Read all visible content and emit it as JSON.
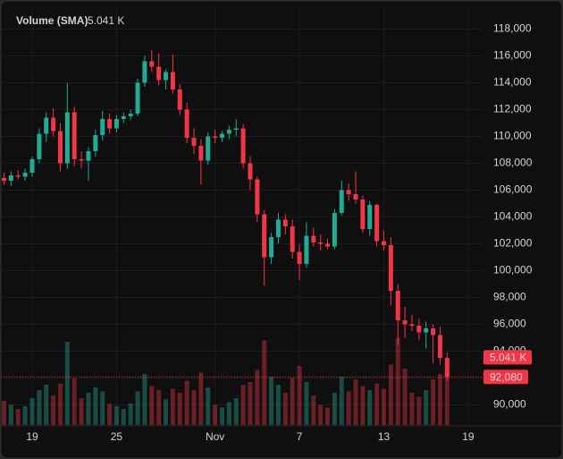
{
  "chart_data": {
    "type": "candlestick",
    "indicator": {
      "name": "Volume (SMA)",
      "value": 5.041,
      "value_label": "5.041 K"
    },
    "last_price": {
      "value": 92080,
      "label": "92,080"
    },
    "up_color": "#22ab94",
    "down_color": "#f23645",
    "grid": true,
    "ylim": [
      88500,
      118700
    ],
    "yticks": [
      {
        "value": 90000,
        "label": "90,000"
      },
      {
        "value": 92000,
        "label": "92,000"
      },
      {
        "value": 94000,
        "label": "94,000"
      },
      {
        "value": 96000,
        "label": "96,000"
      },
      {
        "value": 98000,
        "label": "98,000"
      },
      {
        "value": 100000,
        "label": "100,000"
      },
      {
        "value": 102000,
        "label": "102,000"
      },
      {
        "value": 104000,
        "label": "104,000"
      },
      {
        "value": 106000,
        "label": "106,000"
      },
      {
        "value": 108000,
        "label": "108,000"
      },
      {
        "value": 110000,
        "label": "110,000"
      },
      {
        "value": 112000,
        "label": "112,000"
      },
      {
        "value": 114000,
        "label": "114,000"
      },
      {
        "value": 116000,
        "label": "116,000"
      },
      {
        "value": 118000,
        "label": "118,000"
      }
    ],
    "categories": [
      null,
      null,
      null,
      null,
      "19",
      null,
      null,
      null,
      null,
      null,
      null,
      null,
      null,
      null,
      null,
      null,
      "25",
      null,
      null,
      null,
      null,
      null,
      null,
      null,
      null,
      null,
      null,
      null,
      null,
      null,
      "Nov",
      null,
      null,
      null,
      null,
      null,
      null,
      null,
      null,
      null,
      null,
      null,
      "7",
      null,
      null,
      null,
      null,
      null,
      null,
      null,
      null,
      null,
      null,
      null,
      "13",
      null,
      null,
      null,
      null,
      null,
      null,
      null,
      null,
      null,
      null,
      null,
      "19"
    ],
    "open": [
      106900,
      106700,
      107100,
      107000,
      107300,
      108300,
      110200,
      111400,
      110400,
      108000,
      111800,
      108300,
      108200,
      108900,
      110100,
      111300,
      110600,
      111300,
      111500,
      111700,
      114000,
      115600,
      115200,
      114200,
      114800,
      113500,
      112000,
      109900,
      109300,
      108200,
      110000,
      109900,
      110200,
      110500,
      110600,
      108000,
      106800,
      104200,
      101000,
      102500,
      103800,
      103300,
      101400,
      100500,
      102600,
      102100,
      102000,
      101800,
      104300,
      106000,
      105700,
      105300,
      103100,
      104900,
      102200,
      101900,
      98500,
      96300,
      96000,
      95900,
      95400,
      95700,
      95200,
      93500,
      null,
      null,
      null
    ],
    "high": [
      107300,
      107400,
      107500,
      107600,
      108500,
      110600,
      111800,
      112100,
      111000,
      114000,
      112200,
      108900,
      109200,
      110500,
      111900,
      111700,
      111600,
      111800,
      112000,
      114300,
      116000,
      116400,
      116200,
      115000,
      116100,
      113900,
      112500,
      110600,
      109800,
      110300,
      110500,
      110400,
      110800,
      111300,
      110900,
      108500,
      107000,
      104500,
      102800,
      104300,
      104200,
      103800,
      102000,
      103600,
      103200,
      102700,
      102400,
      104600,
      106700,
      106500,
      107400,
      105600,
      105200,
      105000,
      103000,
      102500,
      99000,
      97300,
      96700,
      96400,
      96200,
      96000,
      95800,
      93900,
      null,
      null,
      null
    ],
    "low": [
      106400,
      106300,
      106800,
      106700,
      107000,
      108000,
      109600,
      110000,
      107400,
      107600,
      107800,
      107600,
      106700,
      108500,
      109700,
      110200,
      110300,
      111000,
      111200,
      111500,
      113700,
      114800,
      113800,
      113500,
      113200,
      111600,
      109500,
      108700,
      106400,
      107900,
      109500,
      109600,
      109800,
      110000,
      107600,
      106000,
      103600,
      98900,
      100500,
      102000,
      102700,
      100900,
      99300,
      100200,
      101800,
      101500,
      101600,
      101600,
      104100,
      105200,
      105000,
      102800,
      102600,
      101800,
      101500,
      97400,
      94500,
      95000,
      95500,
      94800,
      94200,
      93100,
      93000,
      91800,
      null,
      null,
      null
    ],
    "close": [
      106700,
      107100,
      107000,
      107300,
      108300,
      110200,
      111400,
      110400,
      108000,
      111800,
      108300,
      108200,
      108900,
      110100,
      111300,
      110600,
      111300,
      111500,
      111700,
      114000,
      115600,
      115200,
      114200,
      114800,
      113500,
      112000,
      109900,
      109300,
      108200,
      110000,
      109900,
      110200,
      110500,
      110600,
      108000,
      106800,
      104200,
      101000,
      102500,
      103800,
      103300,
      101400,
      100500,
      102600,
      102100,
      102000,
      101800,
      104300,
      106000,
      105700,
      105300,
      103100,
      104900,
      102200,
      101900,
      98500,
      96300,
      96000,
      95900,
      95400,
      95700,
      95200,
      93500,
      92080,
      null,
      null,
      null
    ],
    "volume": [
      1.8,
      1.5,
      1.2,
      1.4,
      2.0,
      2.6,
      3.0,
      2.2,
      3.1,
      6.2,
      3.5,
      2.0,
      2.4,
      2.8,
      2.5,
      1.6,
      1.4,
      1.2,
      1.6,
      2.5,
      3.8,
      2.9,
      2.6,
      1.9,
      2.7,
      2.4,
      3.3,
      2.6,
      3.9,
      2.8,
      1.5,
      1.3,
      1.7,
      2.0,
      3.0,
      3.2,
      4.1,
      6.3,
      3.6,
      3.0,
      2.4,
      3.5,
      4.4,
      3.2,
      2.2,
      1.5,
      1.3,
      2.4,
      3.6,
      2.5,
      3.4,
      2.9,
      2.6,
      3.1,
      2.7,
      4.5,
      6.5,
      4.2,
      2.4,
      2.1,
      2.6,
      3.4,
      3.8,
      4.6,
      null,
      null,
      null
    ]
  }
}
